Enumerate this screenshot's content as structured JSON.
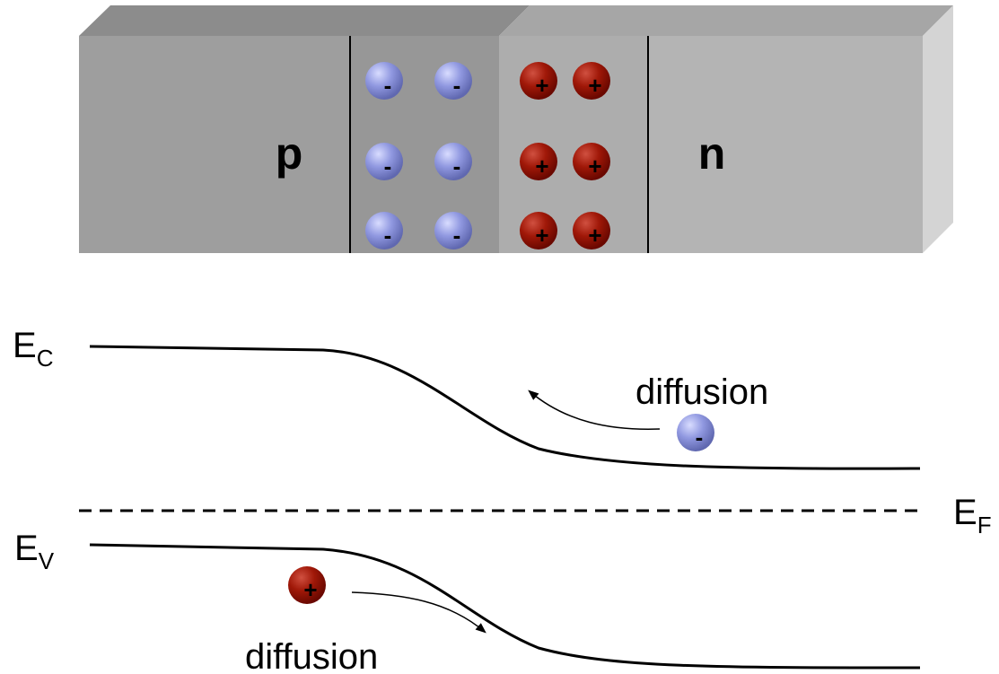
{
  "block": {
    "p_label": "p",
    "n_label": "n"
  },
  "charges": {
    "negative": "-",
    "positive": "+"
  },
  "bands": {
    "conduction": {
      "symbol": "E",
      "subscript": "C"
    },
    "valence": {
      "symbol": "E",
      "subscript": "V"
    },
    "fermi": {
      "symbol": "E",
      "subscript": "F"
    },
    "electron_flow": "diffusion",
    "hole_flow": "diffusion"
  }
}
